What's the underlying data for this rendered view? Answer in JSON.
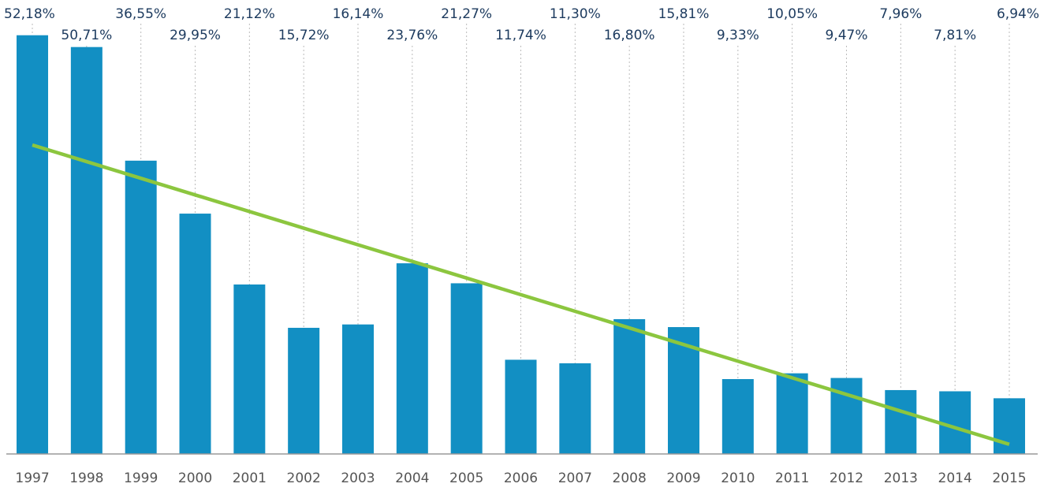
{
  "chart_data": {
    "type": "bar",
    "categories": [
      "1997",
      "1998",
      "1999",
      "2000",
      "2001",
      "2002",
      "2003",
      "2004",
      "2005",
      "2006",
      "2007",
      "2008",
      "2009",
      "2010",
      "2011",
      "2012",
      "2013",
      "2014",
      "2015"
    ],
    "values": [
      52.18,
      50.71,
      36.55,
      29.95,
      21.12,
      15.72,
      16.14,
      23.76,
      21.27,
      11.74,
      11.3,
      16.8,
      15.81,
      9.33,
      10.05,
      9.47,
      7.96,
      7.81,
      6.94
    ],
    "value_labels": [
      "52,18%",
      "50,71%",
      "36,55%",
      "29,95%",
      "21,12%",
      "15,72%",
      "16,14%",
      "23,76%",
      "21,27%",
      "11,74%",
      "11,30%",
      "16,80%",
      "15,81%",
      "9,33%",
      "10,05%",
      "9,47%",
      "7,96%",
      "7,81%",
      "6,94%"
    ],
    "color": "#128fc3",
    "ylim": [
      0,
      55
    ],
    "trendline": {
      "color": "#8cc63f",
      "values": [
        38.5,
        1.2
      ]
    }
  }
}
